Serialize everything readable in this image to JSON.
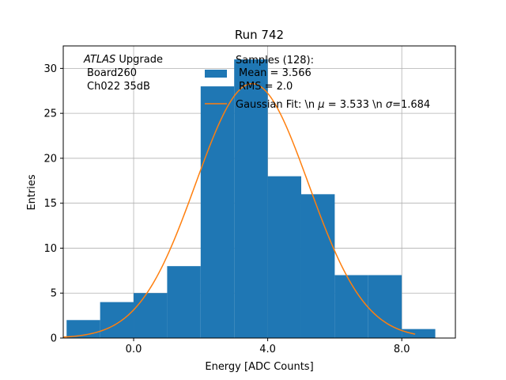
{
  "chart_data": {
    "type": "bar",
    "title": "Run 742",
    "xlabel": "Energy [ADC Counts]",
    "ylabel": "Entries",
    "xlim": [
      -2.1,
      9.6
    ],
    "ylim": [
      0,
      32.5
    ],
    "grid": true,
    "x_ticks": [
      0,
      4,
      8
    ],
    "x_tick_labels": [
      "0.0",
      "4.0",
      "8.0"
    ],
    "y_ticks": [
      0,
      5,
      10,
      15,
      20,
      25,
      30
    ],
    "y_tick_labels": [
      "0",
      "5",
      "10",
      "15",
      "20",
      "25",
      "30"
    ],
    "bar_color": "#1f77b4",
    "line_color": "#ff7f0e",
    "bins": [
      {
        "x0": -2,
        "x1": -1,
        "count": 2
      },
      {
        "x0": -1,
        "x1": 0,
        "count": 4
      },
      {
        "x0": 0,
        "x1": 1,
        "count": 5
      },
      {
        "x0": 1,
        "x1": 2,
        "count": 8
      },
      {
        "x0": 2,
        "x1": 3,
        "count": 28
      },
      {
        "x0": 3,
        "x1": 4,
        "count": 31
      },
      {
        "x0": 4,
        "x1": 5,
        "count": 18
      },
      {
        "x0": 5,
        "x1": 6,
        "count": 16
      },
      {
        "x0": 6,
        "x1": 7,
        "count": 7
      },
      {
        "x0": 7,
        "x1": 8,
        "count": 7
      },
      {
        "x0": 8,
        "x1": 9,
        "count": 1
      }
    ],
    "fit": {
      "mu": 3.533,
      "sigma": 1.684,
      "amplitude": 28.3,
      "x_range": [
        -2.1,
        8.4
      ]
    },
    "legend": {
      "position": "top-center",
      "hist_lines": [
        "Samples (128):",
        "Mean = 3.566",
        "RMS = 2.0"
      ],
      "fit_label_prefix": "Gaussian Fit: \\n ",
      "fit_label_mu": " = 3.533 \\n ",
      "fit_label_sigma": "=1.684",
      "mu_symbol": "μ",
      "sigma_symbol": "σ"
    },
    "annotation": {
      "experiment": "ATLAS",
      "experiment_suffix": " Upgrade",
      "lines": [
        "Board260",
        "Ch022 35dB"
      ]
    }
  }
}
